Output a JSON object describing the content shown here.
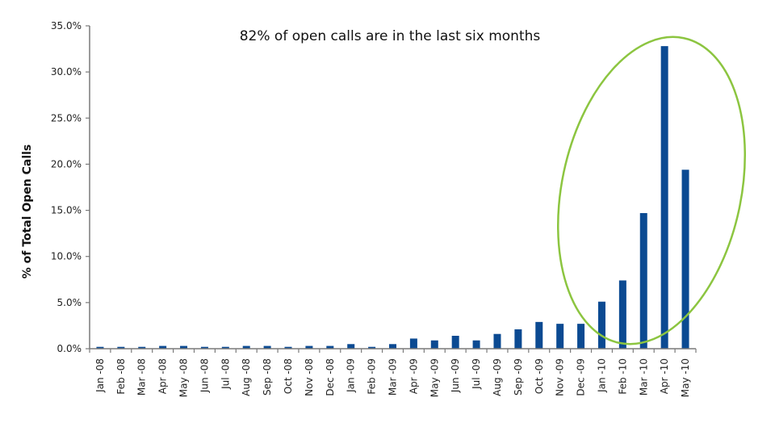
{
  "chart_data": {
    "type": "bar",
    "title": "82% of open calls are in the last six months",
    "xlabel": "",
    "ylabel": "% of Total Open Calls",
    "ylim": [
      0,
      35
    ],
    "yticks": [
      0,
      5,
      10,
      15,
      20,
      25,
      30,
      35
    ],
    "ytick_labels": [
      "0.0%",
      "5.0%",
      "10.0%",
      "15.0%",
      "20.0%",
      "25.0%",
      "30.0%",
      "35.0%"
    ],
    "categories": [
      "Jan -08",
      "Feb -08",
      "Mar -08",
      "Apr -08",
      "May -08",
      "Jun -08",
      "Jul -08",
      "Aug -08",
      "Sep -08",
      "Oct -08",
      "Nov -08",
      "Dec -08",
      "Jan -09",
      "Feb -09",
      "Mar -09",
      "Apr -09",
      "May -09",
      "Jun -09",
      "Jul -09",
      "Aug -09",
      "Sep -09",
      "Oct -09",
      "Nov -09",
      "Dec -09",
      "Jan -10",
      "Feb -10",
      "Mar -10",
      "Apr -10",
      "May -10"
    ],
    "values": [
      0.2,
      0.2,
      0.2,
      0.3,
      0.3,
      0.2,
      0.2,
      0.3,
      0.3,
      0.2,
      0.3,
      0.3,
      0.5,
      0.2,
      0.5,
      1.1,
      0.9,
      1.4,
      0.9,
      1.6,
      2.1,
      2.9,
      2.7,
      2.7,
      5.1,
      7.4,
      14.7,
      32.8,
      19.4
    ],
    "bar_color": "#0b4a92",
    "annotation_color": "#8cc540",
    "grid": false,
    "legend": "none"
  }
}
